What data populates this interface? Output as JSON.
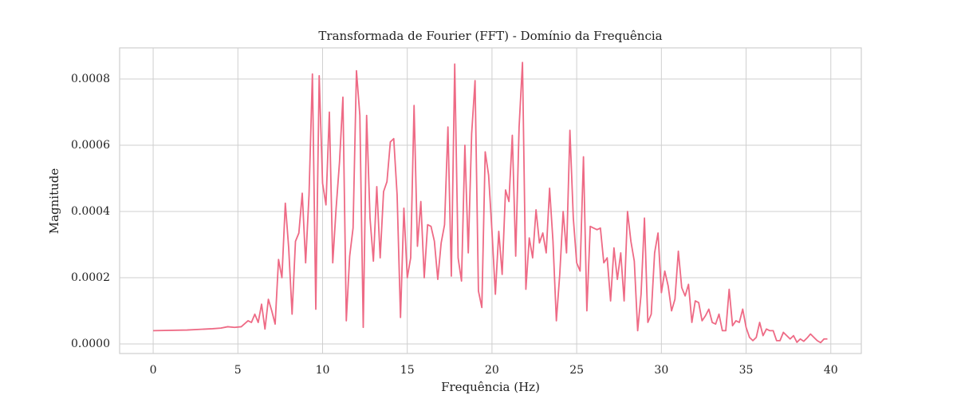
{
  "chart_data": {
    "type": "line",
    "title": "Transformada de Fourier (FFT) - Domínio da Frequência",
    "xlabel": "Frequência (Hz)",
    "ylabel": "Magnitude",
    "xlim": [
      -1.98,
      41.8
    ],
    "ylim": [
      -2.89e-05,
      0.000894
    ],
    "xticks": [
      0,
      5,
      10,
      15,
      20,
      25,
      30,
      35,
      40
    ],
    "yticks": [
      {
        "value": 0,
        "label": "0.0000"
      },
      {
        "value": 0.0002,
        "label": "0.0002"
      },
      {
        "value": 0.0004,
        "label": "0.0004"
      },
      {
        "value": 0.0006,
        "label": "0.0006"
      },
      {
        "value": 0.0008,
        "label": "0.0008"
      }
    ],
    "grid": true,
    "x": [
      0,
      2,
      3.5,
      4,
      4.4,
      4.8,
      5.2,
      5.6,
      5.8,
      6.0,
      6.2,
      6.4,
      6.6,
      6.8,
      7.0,
      7.2,
      7.4,
      7.6,
      7.8,
      8.0,
      8.2,
      8.4,
      8.6,
      8.8,
      9.0,
      9.2,
      9.4,
      9.6,
      9.8,
      10.0,
      10.2,
      10.4,
      10.6,
      10.8,
      11.0,
      11.2,
      11.4,
      11.6,
      11.8,
      12.0,
      12.2,
      12.4,
      12.6,
      12.8,
      13.0,
      13.2,
      13.4,
      13.6,
      13.8,
      14.0,
      14.2,
      14.4,
      14.6,
      14.8,
      15.0,
      15.2,
      15.4,
      15.6,
      15.8,
      16.0,
      16.2,
      16.4,
      16.6,
      16.8,
      17.0,
      17.2,
      17.4,
      17.6,
      17.8,
      18.0,
      18.2,
      18.4,
      18.6,
      18.8,
      19.0,
      19.2,
      19.4,
      19.6,
      19.8,
      20.0,
      20.2,
      20.4,
      20.6,
      20.8,
      21.0,
      21.2,
      21.4,
      21.6,
      21.8,
      22.0,
      22.2,
      22.4,
      22.6,
      22.8,
      23.0,
      23.2,
      23.4,
      23.6,
      23.8,
      24.0,
      24.2,
      24.4,
      24.6,
      24.8,
      25.0,
      25.2,
      25.4,
      25.6,
      25.8,
      26.0,
      26.2,
      26.4,
      26.6,
      26.8,
      27.0,
      27.2,
      27.4,
      27.6,
      27.8,
      28.0,
      28.2,
      28.4,
      28.6,
      28.8,
      29.0,
      29.2,
      29.4,
      29.6,
      29.8,
      30.0,
      30.2,
      30.4,
      30.6,
      30.8,
      31.0,
      31.2,
      31.4,
      31.6,
      31.8,
      32.0,
      32.2,
      32.4,
      32.6,
      32.8,
      33.0,
      33.2,
      33.4,
      33.6,
      33.8,
      34.0,
      34.2,
      34.4,
      34.6,
      34.8,
      35.0,
      35.2,
      35.4,
      35.6,
      35.8,
      36.0,
      36.2,
      36.4,
      36.6,
      36.8,
      37.0,
      37.2,
      37.4,
      37.6,
      37.8,
      38.0,
      38.2,
      38.4,
      38.6,
      38.8,
      39.0,
      39.2,
      39.4,
      39.6,
      39.8
    ],
    "series": [
      {
        "color": "#ee6a85",
        "values": [
          4e-05,
          4.2e-05,
          4.6e-05,
          4.8e-05,
          5.2e-05,
          5e-05,
          5.2e-05,
          7e-05,
          6.5e-05,
          9e-05,
          6.5e-05,
          0.00012,
          4.5e-05,
          0.000135,
          0.0001,
          6e-05,
          0.000255,
          0.0002,
          0.000425,
          0.00029,
          9e-05,
          0.00031,
          0.000335,
          0.000455,
          0.000245,
          0.00045,
          0.000815,
          0.000105,
          0.00081,
          0.000485,
          0.00042,
          0.0007,
          0.000245,
          0.00041,
          0.00055,
          0.000745,
          7e-05,
          0.000265,
          0.00035,
          0.000825,
          0.00069,
          5e-05,
          0.00069,
          0.00038,
          0.00025,
          0.000475,
          0.00026,
          0.00046,
          0.00049,
          0.00061,
          0.00062,
          0.00045,
          8e-05,
          0.00041,
          0.0002,
          0.00026,
          0.00072,
          0.000295,
          0.00043,
          0.0002,
          0.00036,
          0.000355,
          0.00031,
          0.000195,
          0.000305,
          0.00036,
          0.000655,
          0.000205,
          0.000845,
          0.00026,
          0.00019,
          0.0006,
          0.000275,
          0.000635,
          0.000795,
          0.00016,
          0.00011,
          0.00058,
          0.00051,
          0.00034,
          0.00015,
          0.00034,
          0.00021,
          0.000465,
          0.00043,
          0.00063,
          0.000265,
          0.000655,
          0.00085,
          0.000165,
          0.00032,
          0.00026,
          0.000405,
          0.000305,
          0.000335,
          0.000275,
          0.00047,
          0.00031,
          7e-05,
          0.00021,
          0.0004,
          0.000275,
          0.000645,
          0.00038,
          0.000245,
          0.00022,
          0.000565,
          0.0001,
          0.000355,
          0.00035,
          0.000345,
          0.00035,
          0.000245,
          0.00026,
          0.00013,
          0.00029,
          0.000195,
          0.000275,
          0.00013,
          0.0004,
          0.00031,
          0.00025,
          4e-05,
          0.00015,
          0.00038,
          6.5e-05,
          9e-05,
          0.000275,
          0.000335,
          0.000155,
          0.00022,
          0.000175,
          0.0001,
          0.000135,
          0.00028,
          0.00017,
          0.000145,
          0.00018,
          6.5e-05,
          0.00013,
          0.000125,
          7e-05,
          8.5e-05,
          0.000105,
          6.5e-05,
          6e-05,
          9e-05,
          4e-05,
          4e-05,
          0.000165,
          5.5e-05,
          7e-05,
          6.5e-05,
          0.000105,
          5e-05,
          2e-05,
          1e-05,
          2e-05,
          6.5e-05,
          2.5e-05,
          4.5e-05,
          4e-05,
          4e-05,
          1e-05,
          1e-05,
          3.5e-05,
          2.5e-05,
          1.5e-05,
          2.5e-05,
          5e-06,
          1.5e-05,
          8e-06,
          1.8e-05,
          3e-05,
          2e-05,
          1e-05,
          4e-06,
          1.5e-05,
          1.5e-05
        ]
      }
    ]
  }
}
